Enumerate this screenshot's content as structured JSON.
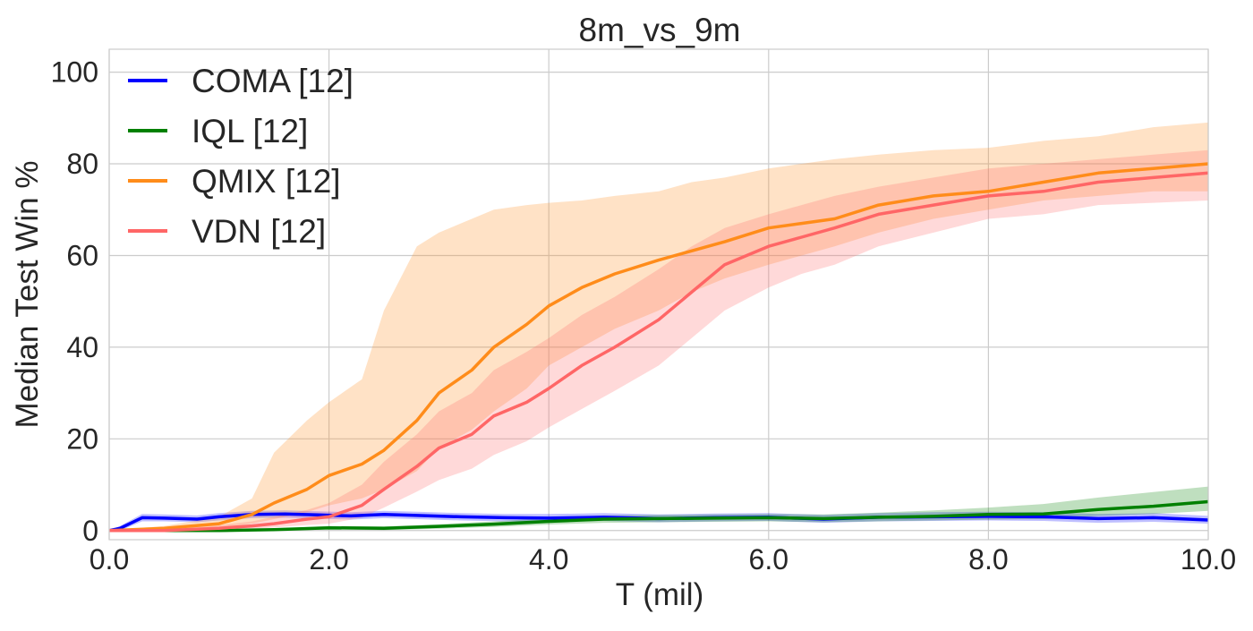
{
  "chart_data": {
    "type": "line",
    "title": "8m_vs_9m",
    "xlabel": "T (mil)",
    "ylabel": "Median Test Win %",
    "xlim": [
      0,
      10
    ],
    "ylim": [
      -2,
      105
    ],
    "xticks": [
      0,
      2,
      4,
      6,
      8,
      10
    ],
    "xtick_labels": [
      "0.0",
      "2.0",
      "4.0",
      "6.0",
      "8.0",
      "10.0"
    ],
    "yticks": [
      0,
      20,
      40,
      60,
      80,
      100
    ],
    "ytick_labels": [
      "0",
      "20",
      "40",
      "60",
      "80",
      "100"
    ],
    "grid": true,
    "legend_position": "top-left",
    "series": [
      {
        "name": "COMA [12]",
        "color": "#0000ff",
        "x": [
          0,
          0.1,
          0.3,
          0.5,
          0.8,
          1.0,
          1.3,
          1.6,
          1.9,
          2.2,
          2.5,
          2.8,
          3.2,
          3.6,
          4.0,
          4.5,
          5.0,
          5.5,
          6.0,
          6.5,
          7.0,
          7.5,
          8.0,
          8.5,
          9.0,
          9.5,
          10.0
        ],
        "y": [
          0,
          0.5,
          2.8,
          2.7,
          2.5,
          3.0,
          3.5,
          3.6,
          3.4,
          3.2,
          3.5,
          3.3,
          3.0,
          2.8,
          2.7,
          2.9,
          2.6,
          2.8,
          2.9,
          2.5,
          2.9,
          3.0,
          3.1,
          3.0,
          2.6,
          2.8,
          2.3
        ],
        "lower": [
          0,
          0,
          2.0,
          2.0,
          1.8,
          2.2,
          2.7,
          2.8,
          2.6,
          2.4,
          2.7,
          2.5,
          2.2,
          2.0,
          1.9,
          2.1,
          1.8,
          2.0,
          2.1,
          1.7,
          2.0,
          2.1,
          2.2,
          2.1,
          1.7,
          1.9,
          1.5
        ],
        "upper": [
          0,
          1.0,
          3.6,
          3.5,
          3.3,
          3.8,
          4.3,
          4.4,
          4.2,
          4.0,
          4.3,
          4.1,
          3.8,
          3.6,
          3.6,
          3.8,
          3.5,
          3.7,
          3.8,
          3.4,
          3.8,
          4.0,
          4.1,
          4.0,
          3.6,
          3.8,
          3.2
        ]
      },
      {
        "name": "IQL [12]",
        "color": "#008000",
        "x": [
          0,
          0.5,
          1.0,
          1.5,
          2.0,
          2.5,
          3.0,
          3.5,
          4.0,
          4.5,
          5.0,
          5.5,
          6.0,
          6.5,
          7.0,
          7.5,
          8.0,
          8.5,
          9.0,
          9.5,
          10.0
        ],
        "y": [
          0,
          0,
          0,
          0.2,
          0.6,
          0.5,
          0.9,
          1.4,
          2.0,
          2.5,
          2.6,
          2.7,
          2.8,
          2.6,
          2.9,
          3.1,
          3.5,
          3.6,
          4.6,
          5.3,
          6.3
        ],
        "lower": [
          0,
          0,
          0,
          0,
          0.2,
          0.1,
          0.4,
          0.8,
          1.3,
          1.7,
          1.8,
          1.9,
          2.0,
          1.8,
          2.0,
          2.2,
          2.4,
          2.5,
          3.2,
          3.6,
          4.3
        ],
        "upper": [
          0,
          0,
          0,
          0.4,
          1.0,
          0.9,
          1.4,
          2.0,
          2.7,
          3.3,
          3.4,
          3.5,
          3.6,
          3.5,
          3.9,
          4.4,
          5.0,
          5.8,
          7.2,
          8.4,
          9.6
        ]
      },
      {
        "name": "QMIX [12]",
        "color": "#ff8c1a",
        "x": [
          0,
          0.5,
          1.0,
          1.3,
          1.5,
          1.8,
          2.0,
          2.3,
          2.5,
          2.8,
          3.0,
          3.3,
          3.5,
          3.8,
          4.0,
          4.3,
          4.6,
          5.0,
          5.3,
          5.6,
          6.0,
          6.3,
          6.6,
          7.0,
          7.5,
          8.0,
          8.5,
          9.0,
          9.5,
          10.0
        ],
        "y": [
          0,
          0.5,
          1.5,
          3.5,
          6.0,
          9.0,
          12.0,
          14.5,
          17.5,
          24.0,
          30.0,
          35.0,
          40.0,
          45.0,
          49.0,
          53.0,
          56.0,
          59.0,
          61.0,
          63.0,
          66.0,
          67.0,
          68.0,
          71.0,
          73.0,
          74.0,
          76.0,
          78.0,
          79.0,
          80.0
        ],
        "lower": [
          0,
          0,
          0.5,
          1.5,
          2.5,
          4.0,
          5.5,
          7.0,
          9.0,
          13.0,
          18.0,
          22.0,
          26.0,
          31.0,
          36.0,
          40.0,
          44.0,
          48.0,
          52.0,
          55.0,
          58.0,
          60.0,
          62.0,
          65.0,
          68.0,
          70.0,
          72.0,
          73.0,
          74.0,
          74.0
        ],
        "upper": [
          0,
          1.0,
          3.0,
          7.0,
          17.0,
          24.0,
          28.0,
          33.0,
          48.0,
          62.0,
          65.0,
          68.0,
          70.0,
          71.0,
          71.5,
          72.0,
          73.0,
          74.0,
          76.0,
          77.0,
          79.0,
          80.0,
          81.0,
          82.0,
          83.0,
          83.5,
          85.0,
          86.0,
          88.0,
          89.0
        ]
      },
      {
        "name": "VDN [12]",
        "color": "#ff6666",
        "x": [
          0,
          0.5,
          1.0,
          1.3,
          1.5,
          1.8,
          2.0,
          2.3,
          2.5,
          2.8,
          3.0,
          3.3,
          3.5,
          3.8,
          4.0,
          4.3,
          4.6,
          5.0,
          5.3,
          5.6,
          6.0,
          6.3,
          6.6,
          7.0,
          7.5,
          8.0,
          8.5,
          9.0,
          9.5,
          10.0
        ],
        "y": [
          0,
          0,
          0.5,
          1.0,
          1.5,
          2.5,
          3.0,
          5.5,
          9.0,
          14.0,
          18.0,
          21.0,
          25.0,
          28.0,
          31.0,
          36.0,
          40.0,
          46.0,
          52.0,
          58.0,
          62.0,
          64.0,
          66.0,
          69.0,
          71.0,
          73.0,
          74.0,
          76.0,
          77.0,
          78.0
        ],
        "lower": [
          0,
          0,
          0,
          0.3,
          0.7,
          1.2,
          1.5,
          2.8,
          5.0,
          8.5,
          11.0,
          13.5,
          16.5,
          19.5,
          22.5,
          26.5,
          30.5,
          36.0,
          42.0,
          48.0,
          53.0,
          56.0,
          58.0,
          62.0,
          65.0,
          68.0,
          69.0,
          71.0,
          71.5,
          72.0
        ],
        "upper": [
          0,
          0.5,
          1.2,
          2.0,
          3.0,
          4.5,
          6.0,
          10.0,
          15.0,
          21.0,
          26.0,
          30.0,
          35.0,
          39.0,
          42.0,
          47.0,
          51.0,
          57.0,
          62.0,
          66.0,
          69.0,
          71.0,
          73.0,
          75.0,
          77.0,
          79.0,
          80.0,
          81.0,
          82.0,
          83.0
        ]
      }
    ]
  }
}
